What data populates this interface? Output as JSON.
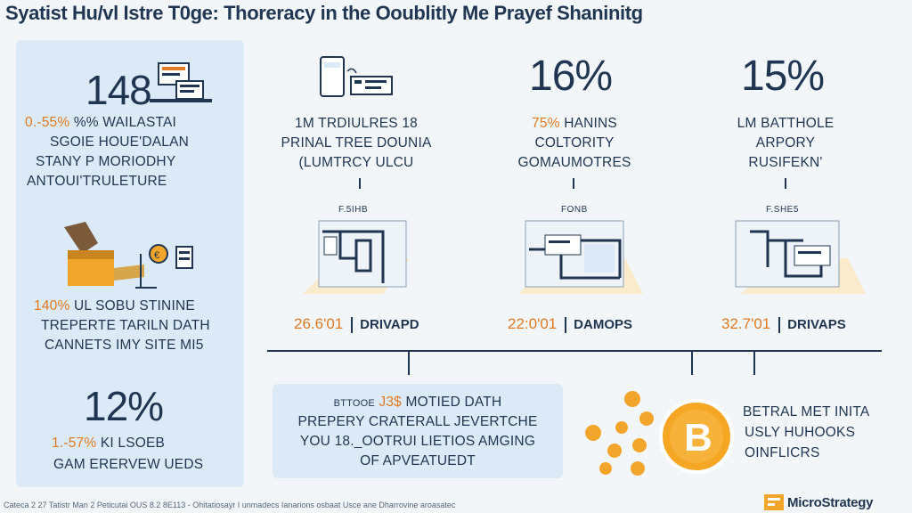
{
  "title": "Syatist Hu/vl Istre T0ge: Thoreracy in the Ooublitly Me Prayef Shaninitg",
  "left": {
    "block1": {
      "number": "148",
      "highlight_a": "0.-55%",
      "highlight_b": "SGOIE",
      "lines": [
        "0.-55%% WAILASTAI",
        "SGOIE  HOUE'DALAN",
        "STANY P MORIODHY",
        "ANTOUI'TRULETURE"
      ]
    },
    "block2": {
      "highlight": "140%",
      "lines": [
        "140% UL SOBU STININE",
        "TREPERTE TARILN DATH",
        "CANNETS IMY SITE MI5"
      ]
    },
    "block3": {
      "number": "12%",
      "highlight": "1.-57%",
      "lines": [
        "1.-57% KI LSOEB",
        "GAM ERERVEW UEDS"
      ]
    }
  },
  "columns": [
    {
      "headline": "",
      "lines": [
        "1M TRDIULRES 18",
        "PRINAL TREE DOUNIA",
        "(LUMTRCY ULCU"
      ],
      "small_label": "F.5IHB",
      "stat_value": "26.6'01",
      "stat_tag": "DRIVAPD"
    },
    {
      "headline": "16%",
      "highlight": "75%",
      "lines": [
        "75% HANINS",
        "COLTORITY",
        "GOMAUMOTRES"
      ],
      "small_label": "FONB",
      "stat_value": "22:0'01",
      "stat_tag": "DAMOPS"
    },
    {
      "headline": "15%",
      "lines": [
        "LM BATTHOLE",
        "ARPORY",
        "RUSIFEKN'"
      ],
      "small_label": "F.SHE5",
      "stat_value": "32.7'01",
      "stat_tag": "DRIVAPS"
    }
  ],
  "callout": {
    "highlight": "J3$",
    "lines": [
      "BTTOOE  J3$ MOTIED DATH",
      "PREPERY CRATERALL JEVERTCHE",
      "YOU 18._OOTRUI LIETIOS AMGING",
      "OF APVEATUEDT"
    ]
  },
  "coins_text": [
    "BETRAL MET INITA",
    "USLY HUHOOKS",
    "OINFLICRS"
  ],
  "footer": "Cateca 2 27 Tatistr Man 2 Peticutai OUS 8.2 8E113 - Ohitatiosayr I unmadecs Ianarions osbaat Usce ane Dharrovine aroasatec",
  "brand": "MicroStrategy",
  "colors": {
    "navy": "#1f3551",
    "orange": "#e07a23",
    "panel": "#dce9f6",
    "gold": "#f2a52b"
  }
}
